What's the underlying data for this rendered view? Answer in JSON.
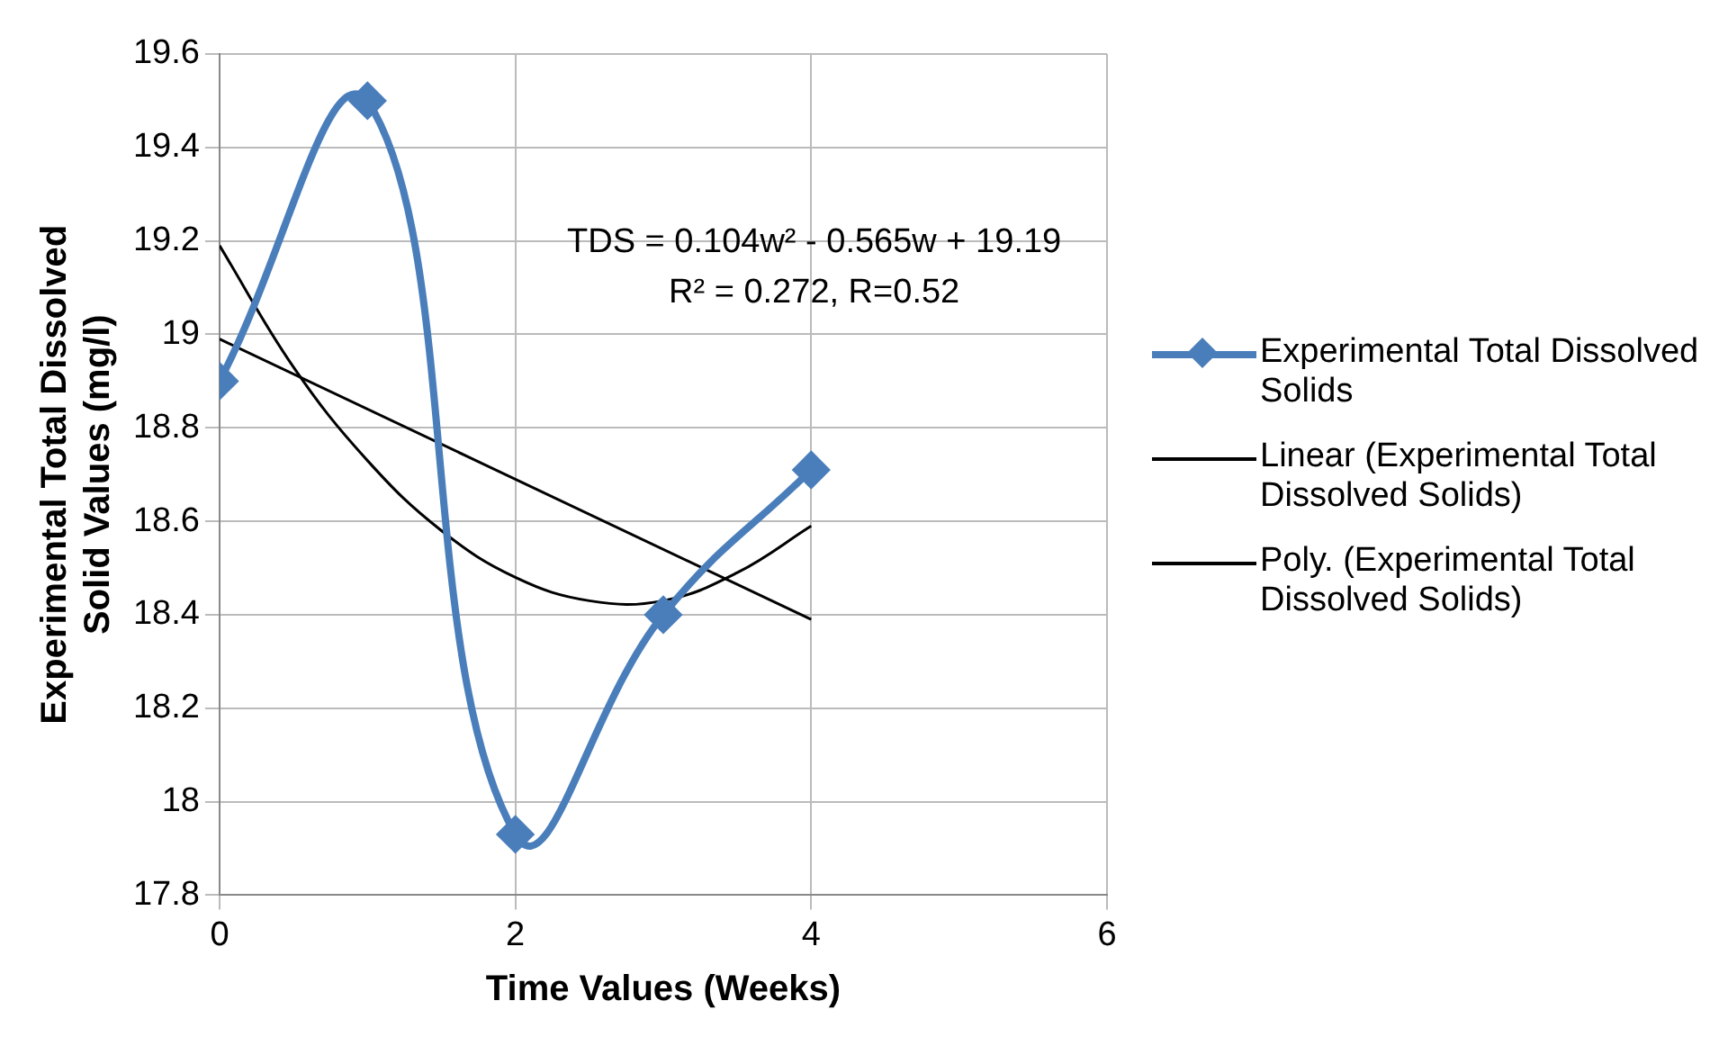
{
  "chart_data": {
    "type": "line",
    "xlabel": "Time Values (Weeks)",
    "ylabel": "Experimental Total Dissolved Solid Values (mg/l)",
    "x": [
      0,
      1,
      2,
      3,
      4
    ],
    "series": [
      {
        "name": "Experimental Total Dissolved Solids",
        "color": "#4a7ebb",
        "values": [
          18.9,
          19.5,
          17.93,
          18.4,
          18.71
        ],
        "marker": "diamond"
      },
      {
        "name": "Linear (Experimental Total Dissolved Solids)",
        "color": "#000000",
        "type": "line",
        "marker": "none",
        "x": [
          0,
          4
        ],
        "values": [
          18.99,
          18.39
        ]
      },
      {
        "name": "Poly. (Experimental Total Dissolved Solids)",
        "color": "#000000",
        "type": "line",
        "marker": "none",
        "x": [
          0,
          0.5,
          1,
          1.5,
          2,
          2.5,
          3,
          3.5,
          4
        ],
        "values": [
          19.19,
          18.93,
          18.73,
          18.58,
          18.48,
          18.43,
          18.43,
          18.49,
          18.59
        ]
      }
    ],
    "xlim": [
      0,
      6
    ],
    "xticks": [
      0,
      2,
      4,
      6
    ],
    "ylim": [
      17.8,
      19.6
    ],
    "yticks": [
      17.8,
      18,
      18.2,
      18.4,
      18.6,
      18.8,
      19,
      19.2,
      19.4,
      19.6
    ],
    "grid": true,
    "legend": "right",
    "annotations": [
      "TDS = 0.104w² - 0.565w + 19.19",
      "R² = 0.272, R=0.52"
    ]
  }
}
